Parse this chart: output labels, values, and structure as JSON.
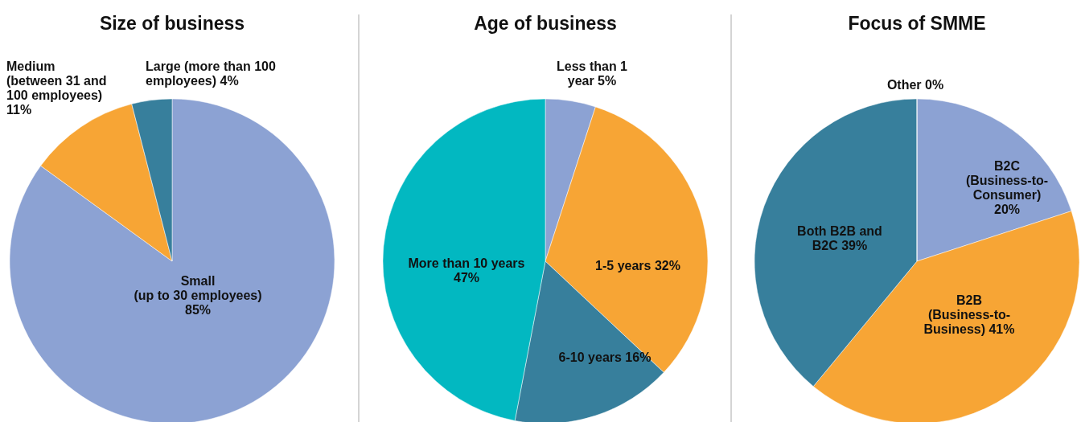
{
  "chart_data": [
    {
      "type": "pie",
      "title": "Size of business",
      "categories": [
        "Small (up to 30 employees)",
        "Medium (between 31 and 100 employees)",
        "Large (more than 100 employees)"
      ],
      "values": [
        85,
        11,
        4
      ],
      "value_labels": [
        "85%",
        "11%",
        "4%"
      ],
      "colors": [
        "#8ca2d3",
        "#f7a535",
        "#377f9c"
      ]
    },
    {
      "type": "pie",
      "title": "Age of business",
      "categories": [
        "Less than 1 year",
        "1-5 years",
        "6-10 years",
        "More than 10 years"
      ],
      "values": [
        5,
        32,
        16,
        47
      ],
      "value_labels": [
        "5%",
        "32%",
        "16%",
        "47%"
      ],
      "colors": [
        "#8ca2d3",
        "#f7a535",
        "#377f9c",
        "#02b8c1"
      ]
    },
    {
      "type": "pie",
      "title": "Focus of SMME",
      "categories": [
        "B2C (Business-to-Consumer)",
        "B2B (Business-to-Business)",
        "Both B2B and B2C",
        "Other"
      ],
      "values": [
        20,
        41,
        39,
        0
      ],
      "value_labels": [
        "20%",
        "41%",
        "39%",
        "0%"
      ],
      "colors": [
        "#8ca2d3",
        "#f7a535",
        "#377f9c",
        "#02b8c1"
      ]
    }
  ]
}
